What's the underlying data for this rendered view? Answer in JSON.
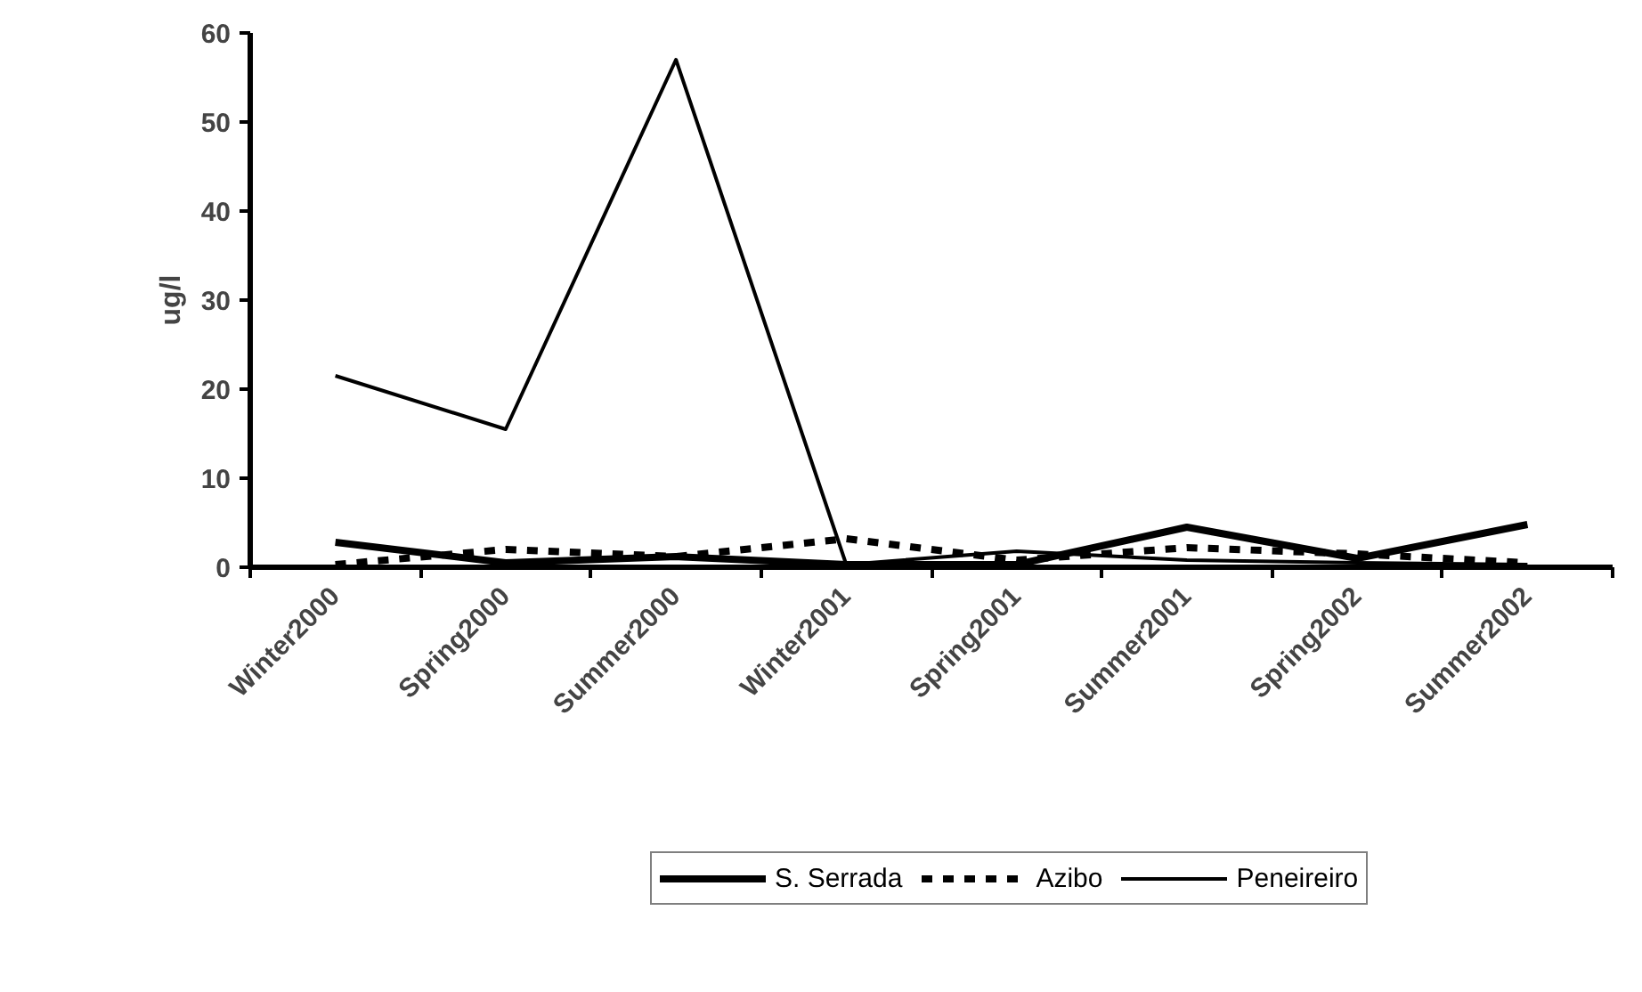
{
  "chart_data": {
    "type": "line",
    "ylabel": "ug/l",
    "categories": [
      "Winter2000",
      "Spring2000",
      "Summer2000",
      "Winter2001",
      "Spring2001",
      "Summer2001",
      "Spring2002",
      "Summer2002"
    ],
    "ylim": [
      0,
      60
    ],
    "yticks": [
      0,
      10,
      20,
      30,
      40,
      50,
      60
    ],
    "grid": false,
    "legend": "bottom",
    "series": [
      {
        "name": "S. Serrada",
        "color": "#000000",
        "line_style": "solid",
        "values": [
          2.8,
          0.5,
          1.2,
          0.3,
          0.3,
          4.5,
          1.0,
          4.8
        ]
      },
      {
        "name": "Azibo",
        "color": "#000000",
        "line_style": "dashed",
        "values": [
          0.3,
          2.0,
          1.2,
          3.2,
          0.8,
          2.2,
          1.5,
          0.5
        ]
      },
      {
        "name": "Peneireiro",
        "color": "#000000",
        "line_style": "solid",
        "values": [
          21.5,
          15.5,
          57,
          0.3,
          1.8,
          0.8,
          0.5,
          0.3
        ]
      }
    ]
  }
}
